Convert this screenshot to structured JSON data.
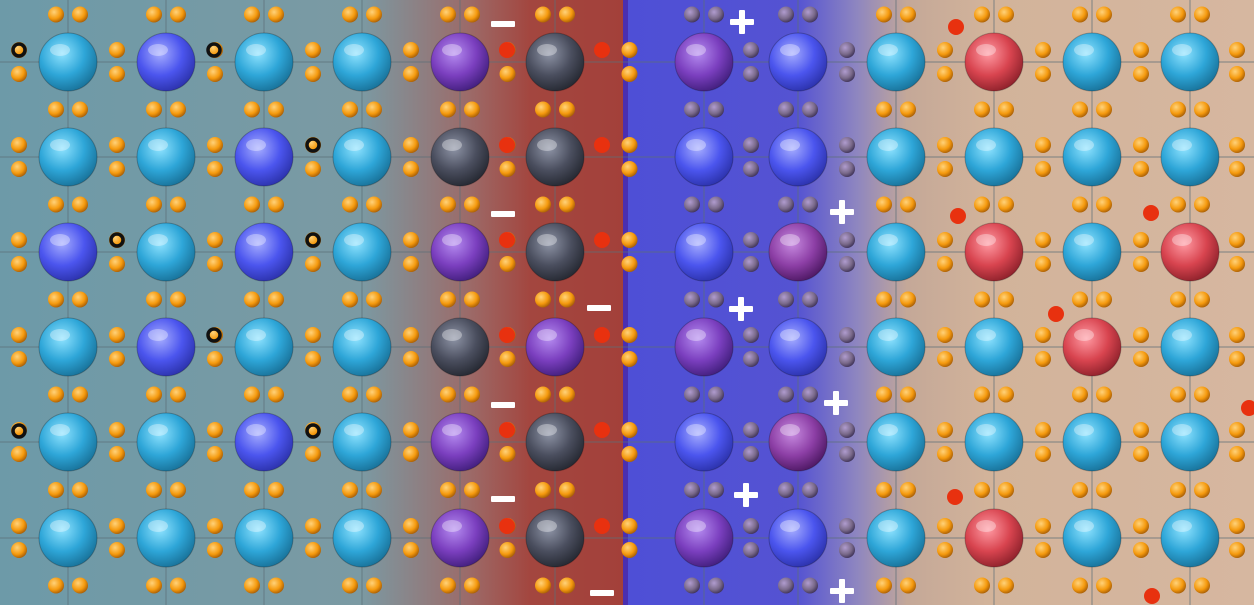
{
  "title": "",
  "panels": [
    {
      "name": "left-material",
      "signs": "minus"
    },
    {
      "name": "right-material",
      "signs": "plus"
    }
  ],
  "colors": {
    "bond_atom": "#f59a0e",
    "bond_atom_dim": "#7a6a8a",
    "electron_dot": "#e8310f",
    "hole_ring": "#111111",
    "large_cyan": "#2ea6d8",
    "large_blue": "#4b55ee",
    "large_purple": "#7b3fbf",
    "large_dark": "#4a4e5e",
    "large_red": "#d8444f",
    "sign": "#ffffff"
  },
  "lattice": {
    "rows": 6,
    "cols": 12,
    "large_atoms": [
      [
        "cyan",
        "blue",
        "cyan",
        "cyan",
        "purple",
        "dark",
        "purple",
        "blue",
        "cyan",
        "red",
        "cyan",
        "cyan"
      ],
      [
        "cyan",
        "cyan",
        "blue",
        "cyan",
        "dark",
        "dark",
        "blue",
        "blue",
        "cyan",
        "cyan",
        "cyan",
        "cyan"
      ],
      [
        "blue",
        "cyan",
        "blue",
        "cyan",
        "purple",
        "dark",
        "blue",
        "magenta",
        "cyan",
        "red",
        "cyan",
        "red"
      ],
      [
        "cyan",
        "blue",
        "cyan",
        "cyan",
        "dark",
        "purple",
        "purple",
        "blue",
        "cyan",
        "cyan",
        "red",
        "cyan"
      ],
      [
        "cyan",
        "cyan",
        "blue",
        "cyan",
        "purple",
        "dark",
        "blue",
        "magenta",
        "cyan",
        "cyan",
        "cyan",
        "cyan"
      ],
      [
        "cyan",
        "cyan",
        "cyan",
        "cyan",
        "purple",
        "dark",
        "purple",
        "blue",
        "cyan",
        "red",
        "cyan",
        "cyan"
      ]
    ]
  },
  "charges": {
    "minus_count": 6,
    "plus_count": 6
  }
}
